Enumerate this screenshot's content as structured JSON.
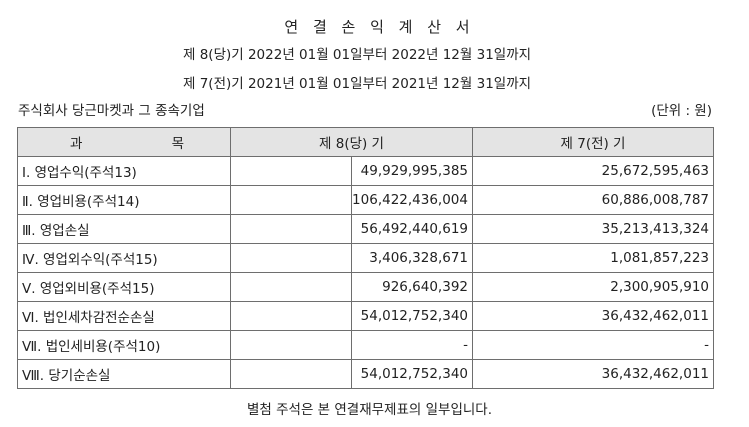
{
  "title": "연 결 손 익 계 산 서",
  "period_current": "제 8(당)기 2022년 01월 01일부터 2022년 12월 31일까지",
  "period_prior": "제 7(전)기 2021년 01월 01일부터 2021년 12월 31일까지",
  "company": "주식회사 당근마켓과 그 종속기업",
  "unit": "(단위 : 원)",
  "header": {
    "subject_left": "과",
    "subject_right": "목",
    "current": "제 8(당) 기",
    "prior": "제 7(전) 기"
  },
  "rows": [
    {
      "label": "Ⅰ. 영업수익(주석13)",
      "current": "49,929,995,385",
      "prior": "25,672,595,463"
    },
    {
      "label": "Ⅱ. 영업비용(주석14)",
      "current": "106,422,436,004",
      "prior": "60,886,008,787"
    },
    {
      "label": "Ⅲ. 영업손실",
      "current": "56,492,440,619",
      "prior": "35,213,413,324"
    },
    {
      "label": "Ⅳ. 영업외수익(주석15)",
      "current": "3,406,328,671",
      "prior": "1,081,857,223"
    },
    {
      "label": "Ⅴ. 영업외비용(주석15)",
      "current": "926,640,392",
      "prior": "2,300,905,910"
    },
    {
      "label": "Ⅵ. 법인세차감전순손실",
      "current": "54,012,752,340",
      "prior": "36,432,462,011"
    },
    {
      "label": "Ⅶ. 법인세비용(주석10)",
      "current": "-",
      "prior": "-"
    },
    {
      "label": "Ⅷ. 당기순손실",
      "current": "54,012,752,340",
      "prior": "36,432,462,011"
    }
  ],
  "footnote": "별첨 주석은 본 연결재무제표의 일부입니다."
}
